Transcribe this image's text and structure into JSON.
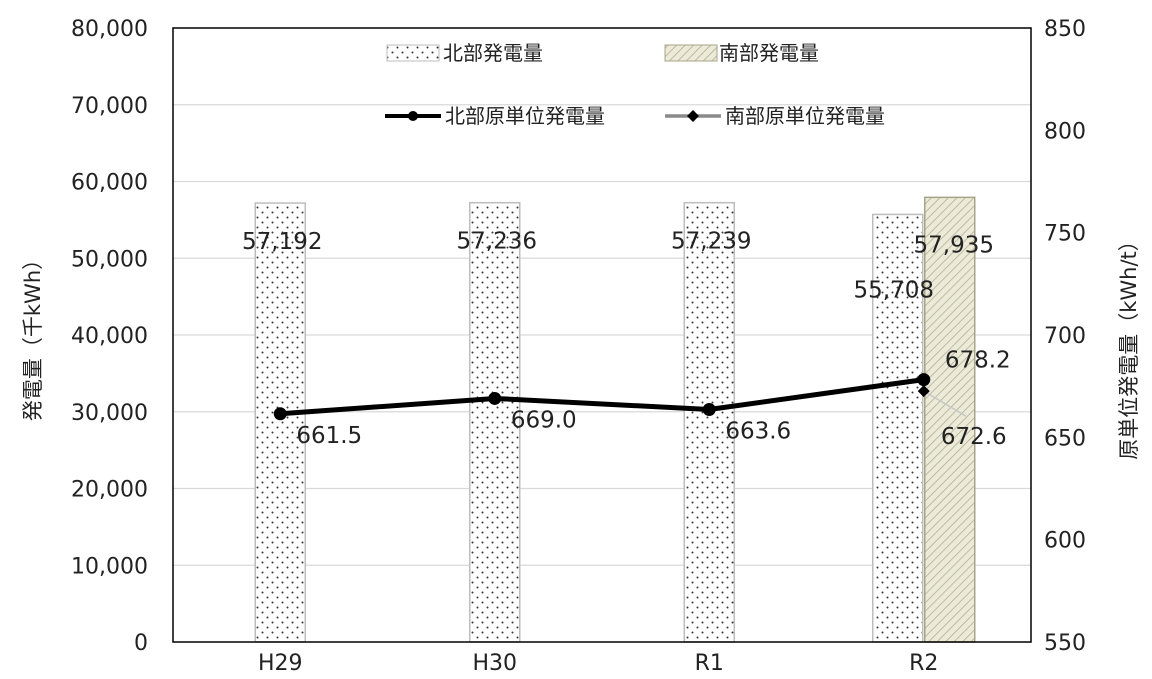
{
  "chart_data": {
    "type": "bar",
    "categories": [
      "H29",
      "H30",
      "R1",
      "R2"
    ],
    "bar_series": [
      {
        "name": "北部発電量",
        "values": [
          57192,
          57236,
          57239,
          55708
        ],
        "labels": [
          "57,192",
          "57,236",
          "57,239",
          "55,708"
        ]
      },
      {
        "name": "南部発電量",
        "values": [
          null,
          null,
          null,
          57935
        ],
        "labels": [
          "",
          "",
          "",
          "57,935"
        ]
      }
    ],
    "line_series": [
      {
        "name": "北部原単位発電量",
        "values": [
          661.5,
          669.0,
          663.6,
          678.2
        ],
        "labels": [
          "661.5",
          "669.0",
          "663.6",
          "678.2"
        ]
      },
      {
        "name": "南部原単位発電量",
        "values": [
          null,
          null,
          null,
          672.6
        ],
        "labels": [
          "",
          "",
          "",
          "672.6"
        ]
      }
    ],
    "y_left": {
      "label": "発電量（千kWh）",
      "range": [
        0,
        80000
      ],
      "ticks": [
        "0",
        "10,000",
        "20,000",
        "30,000",
        "40,000",
        "50,000",
        "60,000",
        "70,000",
        "80,000"
      ]
    },
    "y_right": {
      "label": "原単位発電量（kWh/t）",
      "range": [
        550,
        850
      ],
      "ticks": [
        "550",
        "600",
        "650",
        "700",
        "750",
        "800",
        "850"
      ]
    },
    "grid": true,
    "legend": "top-center",
    "colors": {
      "north_bar_edge": "#bdbdbd",
      "south_bar_fill": "#ecead8",
      "south_bar_edge": "#a8a48a",
      "north_line": "#000000",
      "south_line": "#9a9a9a",
      "grid": "#d9d9d9"
    }
  }
}
